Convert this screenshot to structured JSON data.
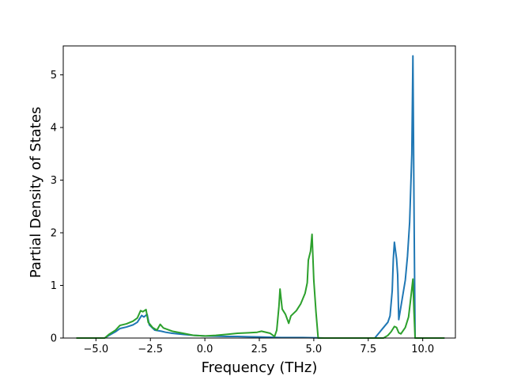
{
  "chart_data": {
    "type": "line",
    "title": "",
    "xlabel": "Frequency (THz)",
    "ylabel": "Partial Density of States",
    "xlim": [
      -6.5,
      11.5
    ],
    "ylim": [
      0,
      5.55
    ],
    "grid": false,
    "legend": "none",
    "xticks": [
      -5.0,
      -2.5,
      0.0,
      2.5,
      5.0,
      7.5,
      10.0
    ],
    "xtick_labels": [
      "−5.0",
      "−2.5",
      "0.0",
      "2.5",
      "5.0",
      "7.5",
      "10.0"
    ],
    "yticks": [
      0,
      1,
      2,
      3,
      4,
      5
    ],
    "ytick_labels": [
      "0",
      "1",
      "2",
      "3",
      "4",
      "5"
    ],
    "series": [
      {
        "color": "#1f77b4",
        "points": [
          [
            -5.9,
            0
          ],
          [
            -4.6,
            0
          ],
          [
            -4.4,
            0.05
          ],
          [
            -4.1,
            0.12
          ],
          [
            -3.9,
            0.18
          ],
          [
            -3.6,
            0.21
          ],
          [
            -3.3,
            0.25
          ],
          [
            -3.1,
            0.3
          ],
          [
            -2.9,
            0.43
          ],
          [
            -2.8,
            0.4
          ],
          [
            -2.65,
            0.45
          ],
          [
            -2.55,
            0.25
          ],
          [
            -2.3,
            0.15
          ],
          [
            -2.0,
            0.13
          ],
          [
            -1.8,
            0.11
          ],
          [
            -1.5,
            0.09
          ],
          [
            -1.0,
            0.07
          ],
          [
            -0.5,
            0.05
          ],
          [
            0.0,
            0.04
          ],
          [
            0.5,
            0.035
          ],
          [
            1.0,
            0.03
          ],
          [
            1.5,
            0.03
          ],
          [
            2.0,
            0.025
          ],
          [
            2.5,
            0.02
          ],
          [
            3.0,
            0.015
          ],
          [
            3.5,
            0.01
          ],
          [
            4.5,
            0.01
          ],
          [
            5.0,
            0.005
          ],
          [
            5.5,
            0
          ],
          [
            7.8,
            0
          ],
          [
            8.0,
            0.1
          ],
          [
            8.2,
            0.2
          ],
          [
            8.4,
            0.3
          ],
          [
            8.5,
            0.42
          ],
          [
            8.6,
            0.9
          ],
          [
            8.65,
            1.5
          ],
          [
            8.7,
            1.82
          ],
          [
            8.8,
            1.5
          ],
          [
            8.85,
            1.2
          ],
          [
            8.9,
            0.35
          ],
          [
            9.0,
            0.6
          ],
          [
            9.2,
            1.1
          ],
          [
            9.3,
            1.55
          ],
          [
            9.4,
            2.2
          ],
          [
            9.5,
            3.5
          ],
          [
            9.55,
            5.36
          ],
          [
            9.6,
            2.5
          ],
          [
            9.65,
            0
          ],
          [
            11.0,
            0
          ]
        ]
      },
      {
        "color": "#2ca02c",
        "points": [
          [
            -5.9,
            0
          ],
          [
            -4.6,
            0
          ],
          [
            -4.4,
            0.07
          ],
          [
            -4.1,
            0.15
          ],
          [
            -3.9,
            0.24
          ],
          [
            -3.6,
            0.27
          ],
          [
            -3.3,
            0.32
          ],
          [
            -3.1,
            0.38
          ],
          [
            -2.95,
            0.52
          ],
          [
            -2.85,
            0.5
          ],
          [
            -2.7,
            0.54
          ],
          [
            -2.6,
            0.3
          ],
          [
            -2.4,
            0.2
          ],
          [
            -2.2,
            0.15
          ],
          [
            -2.05,
            0.26
          ],
          [
            -1.9,
            0.19
          ],
          [
            -1.5,
            0.13
          ],
          [
            -1.0,
            0.09
          ],
          [
            -0.5,
            0.05
          ],
          [
            0.0,
            0.04
          ],
          [
            0.5,
            0.05
          ],
          [
            1.0,
            0.07
          ],
          [
            1.5,
            0.09
          ],
          [
            2.0,
            0.1
          ],
          [
            2.4,
            0.11
          ],
          [
            2.6,
            0.13
          ],
          [
            3.0,
            0.09
          ],
          [
            3.2,
            0.03
          ],
          [
            3.3,
            0.15
          ],
          [
            3.4,
            0.6
          ],
          [
            3.45,
            0.93
          ],
          [
            3.55,
            0.55
          ],
          [
            3.7,
            0.45
          ],
          [
            3.85,
            0.28
          ],
          [
            3.95,
            0.42
          ],
          [
            4.2,
            0.52
          ],
          [
            4.4,
            0.65
          ],
          [
            4.6,
            0.85
          ],
          [
            4.7,
            1.05
          ],
          [
            4.75,
            1.48
          ],
          [
            4.85,
            1.65
          ],
          [
            4.92,
            1.97
          ],
          [
            5.0,
            1.1
          ],
          [
            5.1,
            0.5
          ],
          [
            5.2,
            0
          ],
          [
            8.2,
            0
          ],
          [
            8.4,
            0.05
          ],
          [
            8.55,
            0.12
          ],
          [
            8.7,
            0.22
          ],
          [
            8.8,
            0.2
          ],
          [
            8.9,
            0.1
          ],
          [
            9.0,
            0.08
          ],
          [
            9.2,
            0.2
          ],
          [
            9.35,
            0.4
          ],
          [
            9.45,
            0.75
          ],
          [
            9.55,
            1.12
          ],
          [
            9.6,
            0.5
          ],
          [
            9.65,
            0
          ],
          [
            11.0,
            0
          ]
        ]
      }
    ]
  }
}
